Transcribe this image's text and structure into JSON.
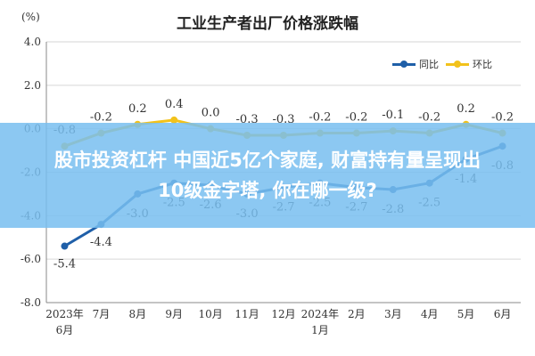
{
  "chart_data": {
    "type": "line",
    "title": "工业生产者出厂价格涨跌幅",
    "unit_label": "(%)",
    "categories": [
      "2023年6月",
      "7月",
      "8月",
      "9月",
      "10月",
      "11月",
      "12月",
      "2024年1月",
      "2月",
      "3月",
      "4月",
      "5月",
      "6月"
    ],
    "category_lines": [
      [
        "2023年",
        "6月"
      ],
      [
        "7月"
      ],
      [
        "8月"
      ],
      [
        "9月"
      ],
      [
        "10月"
      ],
      [
        "11月"
      ],
      [
        "12月"
      ],
      [
        "2024年",
        "1月"
      ],
      [
        "2月"
      ],
      [
        "3月"
      ],
      [
        "4月"
      ],
      [
        "5月"
      ],
      [
        "6月"
      ]
    ],
    "ylim": [
      -8.0,
      4.0
    ],
    "yticks": [
      4.0,
      2.0,
      0.0,
      -2.0,
      -4.0,
      -6.0,
      -8.0
    ],
    "ytick_labels": [
      "4.0",
      "2.0",
      "0.0",
      "-2.0",
      "-4.0",
      "-6.0",
      "-8.0"
    ],
    "grid": true,
    "legend_position": "top-right",
    "series": [
      {
        "name": "同比",
        "color": "#1f5fa8",
        "values": [
          -5.4,
          -4.4,
          -3.0,
          -2.5,
          -2.6,
          -3.0,
          -2.7,
          -2.5,
          -2.7,
          -2.8,
          -2.5,
          -1.4,
          -0.8
        ],
        "labels": [
          "-5.4",
          "-4.4",
          "-3.0",
          "-2.5",
          "-2.6",
          "-3.0",
          "-2.7",
          "-2.5",
          "-2.7",
          "-2.8",
          "-2.5",
          "-1.4",
          "-0.8"
        ]
      },
      {
        "name": "环比",
        "color": "#f2c21b",
        "values": [
          -0.8,
          -0.2,
          0.2,
          0.4,
          0.0,
          -0.3,
          -0.3,
          -0.2,
          -0.2,
          -0.1,
          -0.2,
          0.2,
          -0.2
        ],
        "labels": [
          "-0.8",
          "-0.2",
          "0.2",
          "0.4",
          "0.0",
          "-0.3",
          "-0.3",
          "-0.2",
          "-0.2",
          "-0.1",
          "-0.2",
          "0.2",
          "-0.2"
        ]
      }
    ]
  },
  "banner": {
    "line1": "股市投资杠杆 中国近5亿个家庭, 财富持有量呈现出",
    "line2": "10级金字塔, 你在哪一级?"
  }
}
